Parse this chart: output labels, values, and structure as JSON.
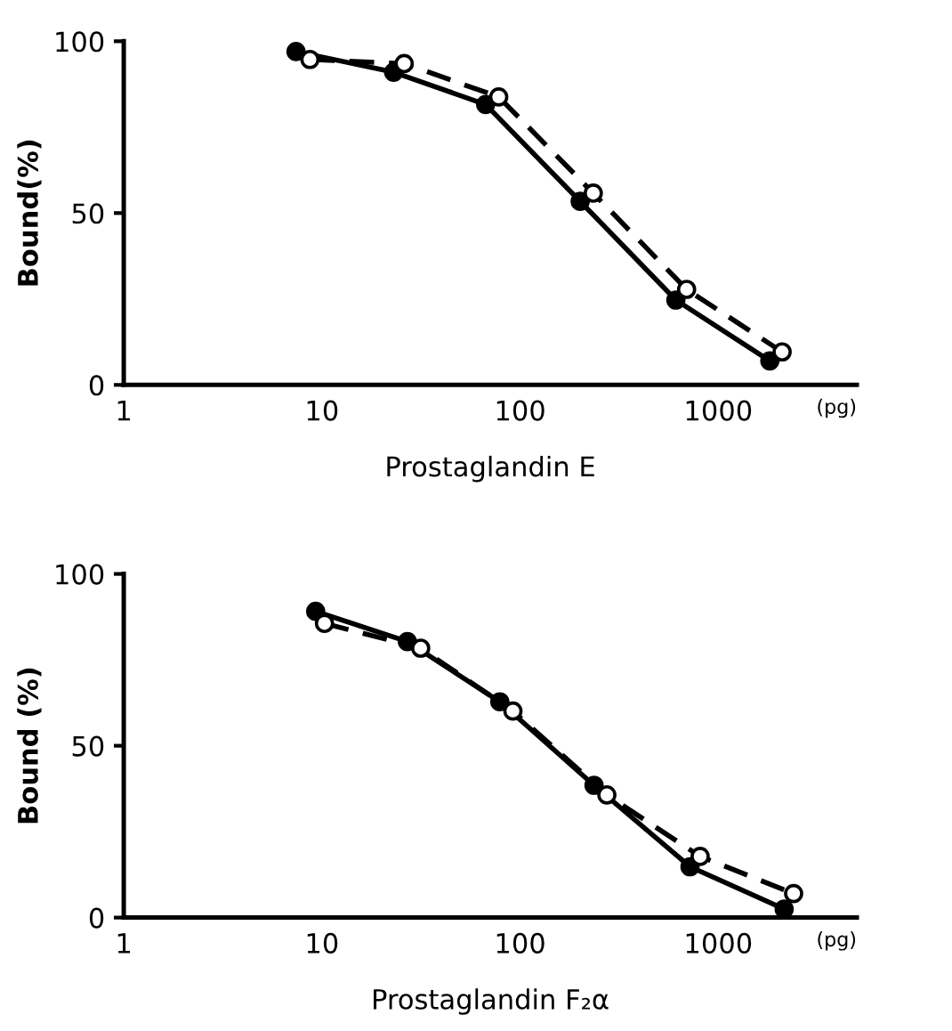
{
  "chart_data": [
    {
      "type": "line",
      "xlabel": "Prostaglandin E",
      "ylabel": "Bound(%)",
      "annotations": [
        "(pg)"
      ],
      "log": "x",
      "xlim": [
        1,
        5000
      ],
      "xticks": [
        1,
        10,
        100,
        1000
      ],
      "ylim": [
        0,
        100
      ],
      "yticks": [
        0,
        50,
        100
      ],
      "grid": false,
      "legend": false,
      "marker": "circle",
      "series": [
        {
          "color": "#000000",
          "line_style": "solid",
          "x": [
            7.4,
            23,
            67,
            201,
            611,
            1820
          ],
          "values": [
            97,
            91,
            81.6,
            53.4,
            24.7,
            7
          ]
        },
        {
          "color": "#000000",
          "line_style": "dashed",
          "x": [
            8.7,
            26,
            78,
            234,
            692,
            2100
          ],
          "values": [
            94.7,
            93.5,
            83.8,
            55.8,
            27.8,
            9.6
          ]
        }
      ]
    },
    {
      "type": "line",
      "xlabel": "Prostaglandin F₂α",
      "ylabel": "Bound (%)",
      "annotations": [
        "(pg)"
      ],
      "log": "x",
      "xlim": [
        1,
        5000
      ],
      "xticks": [
        1,
        10,
        100,
        1000
      ],
      "ylim": [
        0,
        100
      ],
      "yticks": [
        0,
        50,
        100
      ],
      "grid": false,
      "legend": false,
      "marker": "circle",
      "series": [
        {
          "color": "#000000",
          "line_style": "solid",
          "x": [
            9.3,
            27,
            79,
            236,
            720,
            2150
          ],
          "values": [
            89.1,
            80.3,
            62.8,
            38.5,
            14.8,
            2.5
          ]
        },
        {
          "color": "#000000",
          "line_style": "dashed",
          "x": [
            10.3,
            31.5,
            92,
            274,
            810,
            2400
          ],
          "values": [
            85.6,
            78.4,
            60.1,
            35.7,
            17.8,
            7
          ]
        }
      ]
    }
  ]
}
